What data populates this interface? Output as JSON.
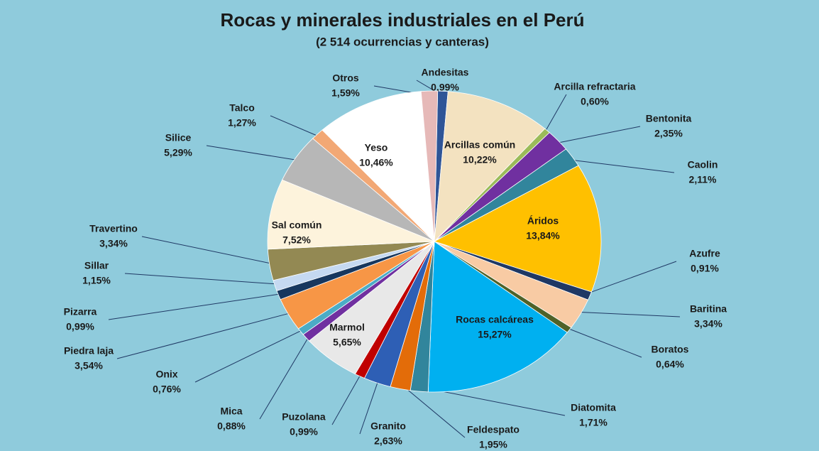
{
  "chart_data": {
    "type": "pie",
    "title": "Rocas y minerales industriales en el Perú",
    "subtitle": "(2 514 ocurrencias y canteras)",
    "categories": [
      "Andesitas",
      "Arcillas común",
      "Arcilla refractaria",
      "Bentonita",
      "Caolin",
      "Áridos",
      "Azufre",
      "Baritina",
      "Boratos",
      "Rocas calcáreas",
      "Diatomita",
      "Feldespato",
      "Granito",
      "Puzolana",
      "Marmol",
      "Mica",
      "Onix",
      "Piedra laja",
      "Pizarra",
      "Sillar",
      "Travertino",
      "Sal común",
      "Silice",
      "Talco",
      "Yeso",
      "Otros"
    ],
    "values": [
      0.99,
      10.22,
      0.6,
      2.35,
      2.11,
      13.84,
      0.91,
      3.34,
      0.64,
      15.27,
      1.71,
      1.95,
      2.63,
      0.99,
      5.65,
      0.88,
      0.76,
      3.54,
      0.99,
      1.15,
      3.34,
      7.52,
      5.29,
      1.27,
      10.46,
      1.59
    ],
    "value_labels": [
      "0,99%",
      "10,22%",
      "0,60%",
      "2,35%",
      "2,11%",
      "13,84%",
      "0,91%",
      "3,34%",
      "0,64%",
      "15,27%",
      "1,71%",
      "1,95%",
      "2,63%",
      "0,99%",
      "5,65%",
      "0,88%",
      "0,76%",
      "3,54%",
      "0,99%",
      "1,15%",
      "3,34%",
      "7,52%",
      "5,29%",
      "1,27%",
      "10,46%",
      "1,59%"
    ],
    "colors": [
      "#2f5597",
      "#f3e2c0",
      "#9bbb59",
      "#7030a0",
      "#31859c",
      "#ffc000",
      "#1f3864",
      "#f8cba4",
      "#4f6228",
      "#00b0f0",
      "#31859c",
      "#e36c09",
      "#2e5fb5",
      "#c00000",
      "#e8e8e8",
      "#7030a0",
      "#4bacc6",
      "#f79646",
      "#17375e",
      "#c5d9f1",
      "#938953",
      "#fdf3dc",
      "#b7b7b7",
      "#f2a875",
      "#ffffff",
      "#e6b9b8"
    ]
  }
}
